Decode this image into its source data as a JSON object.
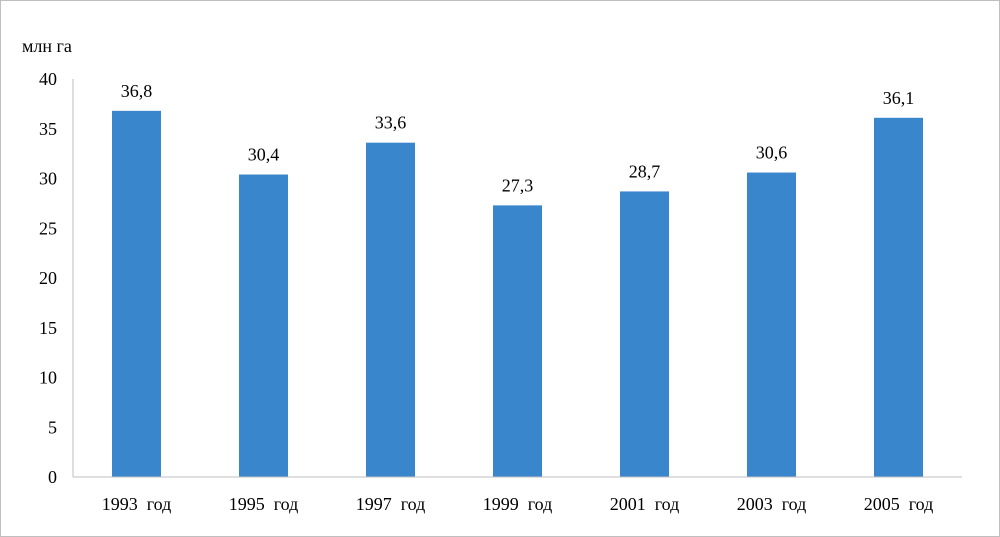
{
  "chart_data": {
    "type": "bar",
    "title": "",
    "ylabel": "млн га",
    "xlabel": "",
    "categories": [
      "1993  год",
      "1995  год",
      "1997  год",
      "1999  год",
      "2001  год",
      "2003  год",
      "2005  год"
    ],
    "values": [
      36.8,
      30.4,
      33.6,
      27.3,
      28.7,
      30.6,
      36.1
    ],
    "value_labels": [
      "36,8",
      "30,4",
      "33,6",
      "27,3",
      "28,7",
      "30,6",
      "36,1"
    ],
    "ylim": [
      0,
      40
    ],
    "yticks": [
      0,
      5,
      10,
      15,
      20,
      25,
      30,
      35,
      40
    ],
    "grid": false,
    "legend": "none",
    "colors": {
      "bar": "#3a86cc",
      "axis": "#bfbfbf"
    }
  }
}
